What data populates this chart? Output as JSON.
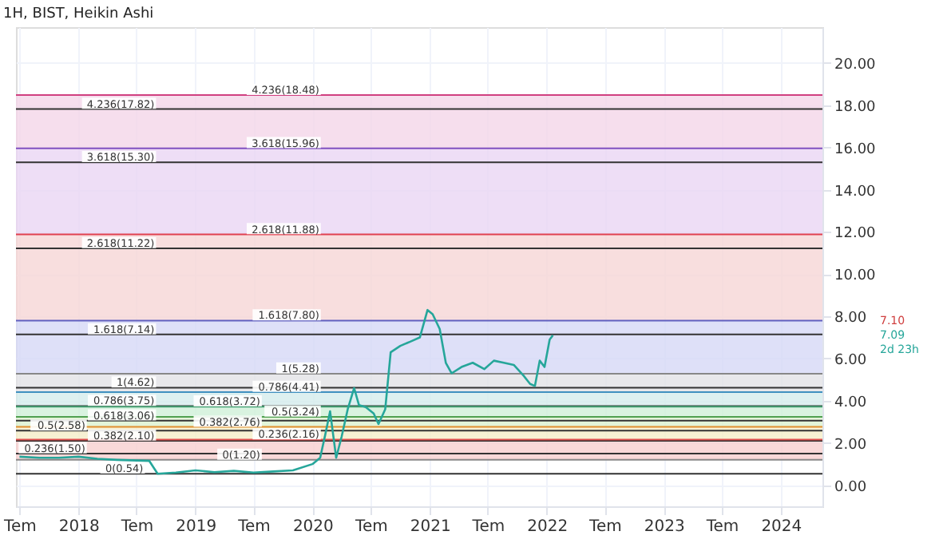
{
  "chart_data": {
    "type": "line",
    "title": "1H, BIST, Heikin Ashi",
    "x": [
      "2017-07-01",
      "2017-09-01",
      "2017-11-01",
      "2018-01-01",
      "2018-03-01",
      "2018-05-01",
      "2018-08-10",
      "2018-09-05",
      "2018-11-01",
      "2019-01-01",
      "2019-03-01",
      "2019-05-01",
      "2019-07-01",
      "2019-09-01",
      "2019-11-01",
      "2020-01-01",
      "2020-01-25",
      "2020-02-10",
      "2020-02-25",
      "2020-03-15",
      "2020-04-01",
      "2020-04-20",
      "2020-05-10",
      "2020-05-25",
      "2020-06-15",
      "2020-07-10",
      "2020-07-25",
      "2020-08-15",
      "2020-09-01",
      "2020-10-01",
      "2020-11-01",
      "2020-12-01",
      "2020-12-25",
      "2021-01-10",
      "2021-02-01",
      "2021-02-20",
      "2021-03-10",
      "2021-04-10",
      "2021-05-15",
      "2021-06-20",
      "2021-07-20",
      "2021-08-20",
      "2021-09-20",
      "2021-10-20",
      "2021-11-10",
      "2021-11-25",
      "2021-12-10",
      "2021-12-25",
      "2022-01-10",
      "2022-01-20"
    ],
    "series": [
      {
        "color": "#26a69a",
        "values": [
          1.35,
          1.3,
          1.3,
          1.35,
          1.25,
          1.2,
          1.15,
          0.54,
          0.6,
          0.7,
          0.62,
          0.68,
          0.6,
          0.65,
          0.7,
          1.0,
          1.3,
          2.4,
          3.5,
          1.3,
          2.3,
          3.6,
          4.6,
          3.8,
          3.7,
          3.4,
          2.9,
          3.6,
          6.3,
          6.6,
          6.8,
          7.0,
          8.3,
          8.1,
          7.4,
          5.8,
          5.3,
          5.6,
          5.8,
          5.5,
          5.9,
          5.8,
          5.7,
          5.2,
          4.8,
          4.7,
          5.9,
          5.6,
          6.9,
          7.1
        ]
      }
    ],
    "xlim": [
      "2017-06-20",
      "2024-05-10"
    ],
    "xticks": [
      {
        "value": "2017-07-01",
        "label": "Tem"
      },
      {
        "value": "2018-01-01",
        "label": "2018"
      },
      {
        "value": "2018-07-01",
        "label": "Tem"
      },
      {
        "value": "2019-01-01",
        "label": "2019"
      },
      {
        "value": "2019-07-01",
        "label": "Tem"
      },
      {
        "value": "2020-01-01",
        "label": "2020"
      },
      {
        "value": "2020-07-01",
        "label": "Tem"
      },
      {
        "value": "2021-01-01",
        "label": "2021"
      },
      {
        "value": "2021-07-01",
        "label": "Tem"
      },
      {
        "value": "2022-01-01",
        "label": "2022"
      },
      {
        "value": "2022-07-01",
        "label": "Tem"
      },
      {
        "value": "2023-01-01",
        "label": "2023"
      },
      {
        "value": "2023-07-01",
        "label": "Tem"
      },
      {
        "value": "2024-01-01",
        "label": "2024"
      }
    ],
    "ylim": [
      -1,
      21.7
    ],
    "yticks": [
      {
        "value": 0,
        "label": "0.00"
      },
      {
        "value": 2,
        "label": "2.00"
      },
      {
        "value": 4,
        "label": "4.00"
      },
      {
        "value": 6,
        "label": "6.00"
      },
      {
        "value": 8,
        "label": "8.00"
      },
      {
        "value": 10,
        "label": "10.00"
      },
      {
        "value": 12,
        "label": "12.00"
      },
      {
        "value": 14,
        "label": "14.00"
      },
      {
        "value": 16,
        "label": "16.00"
      },
      {
        "value": 18,
        "label": "18.00"
      },
      {
        "value": 20,
        "label": "20.00"
      }
    ],
    "grid": true,
    "bands": [
      {
        "axis": "y",
        "from": 1.2,
        "to": 2.16,
        "color": "#f8d0d0"
      },
      {
        "axis": "y",
        "from": 2.16,
        "to": 2.76,
        "color": "#f5eec8"
      },
      {
        "axis": "y",
        "from": 2.76,
        "to": 3.24,
        "color": "#dcf2d0"
      },
      {
        "axis": "y",
        "from": 3.24,
        "to": 3.72,
        "color": "#d0f0d8"
      },
      {
        "axis": "y",
        "from": 3.72,
        "to": 4.41,
        "color": "#d4ecec"
      },
      {
        "axis": "y",
        "from": 4.41,
        "to": 5.28,
        "color": "#e2e2e6"
      },
      {
        "axis": "y",
        "from": 5.28,
        "to": 7.8,
        "color": "#d6d8f6"
      },
      {
        "axis": "y",
        "from": 7.8,
        "to": 11.88,
        "color": "#f6d6d6"
      },
      {
        "axis": "y",
        "from": 11.88,
        "to": 15.96,
        "color": "#ead6f4"
      },
      {
        "axis": "y",
        "from": 15.96,
        "to": 18.48,
        "color": "#f4d6e8"
      }
    ],
    "ref_lines": [
      {
        "axis": "y",
        "value": 0.54,
        "color": "#333333"
      },
      {
        "axis": "y",
        "value": 1.5,
        "color": "#333333"
      },
      {
        "axis": "y",
        "value": 2.1,
        "color": "#333333"
      },
      {
        "axis": "y",
        "value": 2.58,
        "color": "#333333"
      },
      {
        "axis": "y",
        "value": 3.06,
        "color": "#333333"
      },
      {
        "axis": "y",
        "value": 3.75,
        "color": "#333333"
      },
      {
        "axis": "y",
        "value": 4.62,
        "color": "#333333"
      },
      {
        "axis": "y",
        "value": 7.14,
        "color": "#333333"
      },
      {
        "axis": "y",
        "value": 11.22,
        "color": "#333333"
      },
      {
        "axis": "y",
        "value": 15.3,
        "color": "#333333"
      },
      {
        "axis": "y",
        "value": 17.82,
        "color": "#333333"
      },
      {
        "axis": "y",
        "value": 1.2,
        "color": "#888888"
      },
      {
        "axis": "y",
        "value": 2.16,
        "color": "#e05050"
      },
      {
        "axis": "y",
        "value": 2.76,
        "color": "#e09030"
      },
      {
        "axis": "y",
        "value": 3.24,
        "color": "#50a050"
      },
      {
        "axis": "y",
        "value": 3.72,
        "color": "#40a070"
      },
      {
        "axis": "y",
        "value": 4.41,
        "color": "#4090c0"
      },
      {
        "axis": "y",
        "value": 5.28,
        "color": "#888888"
      },
      {
        "axis": "y",
        "value": 7.8,
        "color": "#6060c0"
      },
      {
        "axis": "y",
        "value": 11.88,
        "color": "#e04050"
      },
      {
        "axis": "y",
        "value": 15.96,
        "color": "#8050c0"
      },
      {
        "axis": "y",
        "value": 18.48,
        "color": "#d04080"
      }
    ],
    "annotations": [
      {
        "text": "0(0.54)",
        "x": "2018-08-01",
        "y": 0.54
      },
      {
        "text": "0.236(1.50)",
        "x": "2018-02-01",
        "y": 1.5
      },
      {
        "text": "0.382(2.10)",
        "x": "2018-09-05",
        "y": 2.1
      },
      {
        "text": "0.5(2.58)",
        "x": "2018-02-01",
        "y": 2.58
      },
      {
        "text": "0.618(3.06)",
        "x": "2018-09-05",
        "y": 3.06
      },
      {
        "text": "0.786(3.75)",
        "x": "2018-09-05",
        "y": 3.75
      },
      {
        "text": "1(4.62)",
        "x": "2018-09-05",
        "y": 4.62
      },
      {
        "text": "1.618(7.14)",
        "x": "2018-09-05",
        "y": 7.14
      },
      {
        "text": "2.618(11.22)",
        "x": "2018-09-05",
        "y": 11.22
      },
      {
        "text": "3.618(15.30)",
        "x": "2018-09-05",
        "y": 15.3
      },
      {
        "text": "4.236(17.82)",
        "x": "2018-09-05",
        "y": 17.82
      },
      {
        "text": "0(1.20)",
        "x": "2019-08-01",
        "y": 1.2
      },
      {
        "text": "0.236(2.16)",
        "x": "2020-02-01",
        "y": 2.16
      },
      {
        "text": "0.382(2.76)",
        "x": "2019-08-01",
        "y": 2.76
      },
      {
        "text": "0.5(3.24)",
        "x": "2020-02-01",
        "y": 3.24
      },
      {
        "text": "0.618(3.72)",
        "x": "2019-08-01",
        "y": 3.72
      },
      {
        "text": "0.786(4.41)",
        "x": "2020-02-01",
        "y": 4.41
      },
      {
        "text": "1(5.28)",
        "x": "2020-02-01",
        "y": 5.28
      },
      {
        "text": "1.618(7.80)",
        "x": "2020-02-01",
        "y": 7.8
      },
      {
        "text": "2.618(11.88)",
        "x": "2020-02-01",
        "y": 11.88
      },
      {
        "text": "3.618(15.96)",
        "x": "2020-02-01",
        "y": 15.96
      },
      {
        "text": "4.236(18.48)",
        "x": "2020-02-01",
        "y": 18.48
      },
      "7.10",
      "7.09",
      "2d 23h"
    ]
  }
}
